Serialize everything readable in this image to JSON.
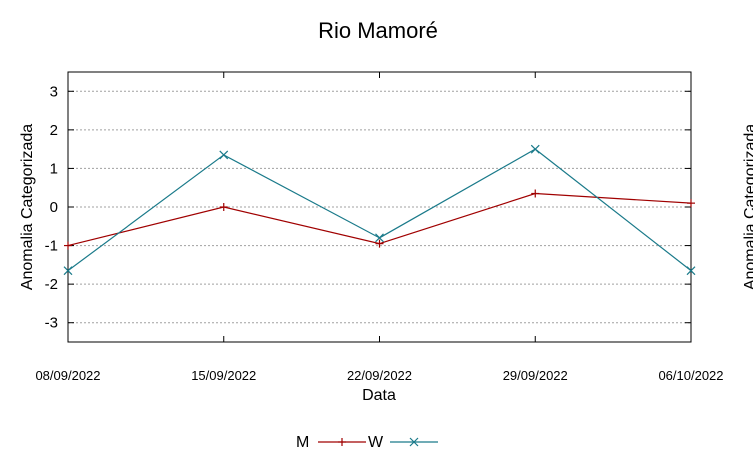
{
  "chart_data": {
    "type": "line",
    "title": "Rio Mamoré",
    "xlabel": "Data",
    "ylabel": "Anomalia Categorizada",
    "right_ylabel": "Anomalia Categorizada",
    "categories": [
      "08/09/2022",
      "15/09/2022",
      "22/09/2022",
      "29/09/2022",
      "06/10/2022"
    ],
    "ylim": [
      -3.5,
      3.5
    ],
    "yticks": [
      -3,
      -2,
      -1,
      0,
      1,
      2,
      3
    ],
    "ytick_labels": [
      "-3",
      "-2",
      "-1",
      "0",
      "1",
      "2",
      "3"
    ],
    "grid": true,
    "legend_position": "bottom-center",
    "series": [
      {
        "name": "M",
        "color": "#a00000",
        "marker": "plus",
        "values": [
          -1.0,
          0.0,
          -0.95,
          0.35,
          0.1
        ]
      },
      {
        "name": "W",
        "color": "#1a7a8a",
        "marker": "cross",
        "values": [
          -1.65,
          1.35,
          -0.8,
          1.5,
          -1.65
        ]
      }
    ]
  }
}
